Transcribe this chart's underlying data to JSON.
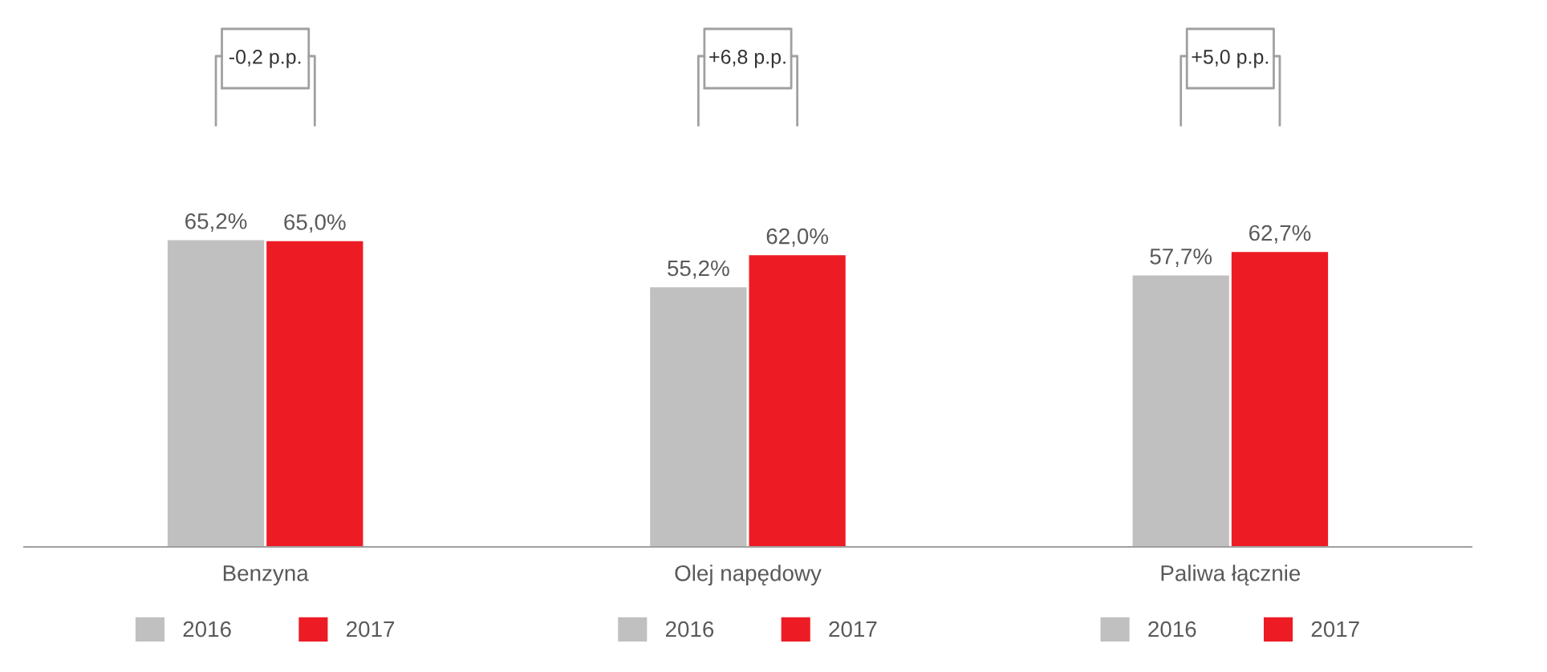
{
  "chart_data": {
    "type": "bar",
    "categories": [
      "Benzyna",
      "Olej napędowy",
      "Paliwa łącznie"
    ],
    "tick_labels": "x",
    "legend": "bottom",
    "annotations": [
      "-0,2 p.p.",
      "+6,8 p.p.",
      "+5,0 p.p."
    ],
    "series": [
      {
        "name": "2016",
        "color": "#c0c0c0",
        "values": [
          65.2,
          55.2,
          57.7
        ],
        "value_labels": [
          "65,2%",
          "55,2%",
          "57,7%"
        ]
      },
      {
        "name": "2017",
        "color": "#ed1c24",
        "values": [
          65.0,
          62.0,
          62.7
        ],
        "value_labels": [
          "65,0%",
          "62,0%",
          "62,7%"
        ]
      }
    ]
  }
}
